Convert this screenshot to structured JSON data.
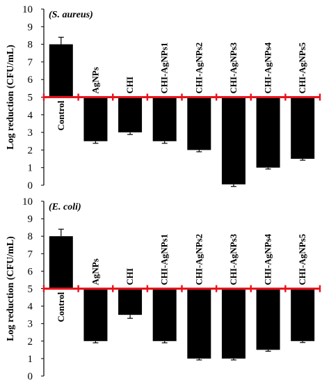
{
  "chart_data": [
    {
      "type": "bar",
      "title": "(S. aureus)",
      "ylabel": "Log reduction (CFU/mL)",
      "xlabel": "",
      "ylim": [
        0,
        10
      ],
      "yticks": [
        "0",
        "1",
        "2",
        "3",
        "4",
        "5",
        "6",
        "7",
        "8",
        "9",
        "10"
      ],
      "baseline": 5,
      "baseline_color": "#e8141c",
      "bar_color": "#000000",
      "categories": [
        "Control",
        "AgNPs",
        "CHI",
        "CHI-AgNPs1",
        "CHI-AgNPs2",
        "CHI-AgNPs3",
        "CHI-AgNPs4",
        "CHI-AgNPs5"
      ],
      "values": [
        8.0,
        2.5,
        3.0,
        2.5,
        2.0,
        0.05,
        1.0,
        1.5
      ],
      "errors": [
        0.4,
        0.12,
        0.12,
        0.12,
        0.1,
        0.12,
        0.08,
        0.08
      ]
    },
    {
      "type": "bar",
      "title": "(E. coli)",
      "ylabel": "Log reduction (CFU/mL)",
      "xlabel": "",
      "ylim": [
        0,
        10
      ],
      "yticks": [
        "0",
        "1",
        "2",
        "3",
        "4",
        "5",
        "6",
        "7",
        "8",
        "9",
        "10"
      ],
      "baseline": 5,
      "baseline_color": "#e8141c",
      "bar_color": "#000000",
      "categories": [
        "Control",
        "AgNPs",
        "CHI",
        "CHI-AgNPs1",
        "CHI-AgNPs2",
        "CHI-AgNPs3",
        "CHI-AgNPs4",
        "CHI-AgNPs5"
      ],
      "values": [
        8.0,
        2.0,
        3.5,
        2.0,
        1.0,
        1.0,
        1.5,
        2.0
      ],
      "errors": [
        0.4,
        0.1,
        0.2,
        0.1,
        0.08,
        0.08,
        0.08,
        0.08
      ]
    }
  ]
}
